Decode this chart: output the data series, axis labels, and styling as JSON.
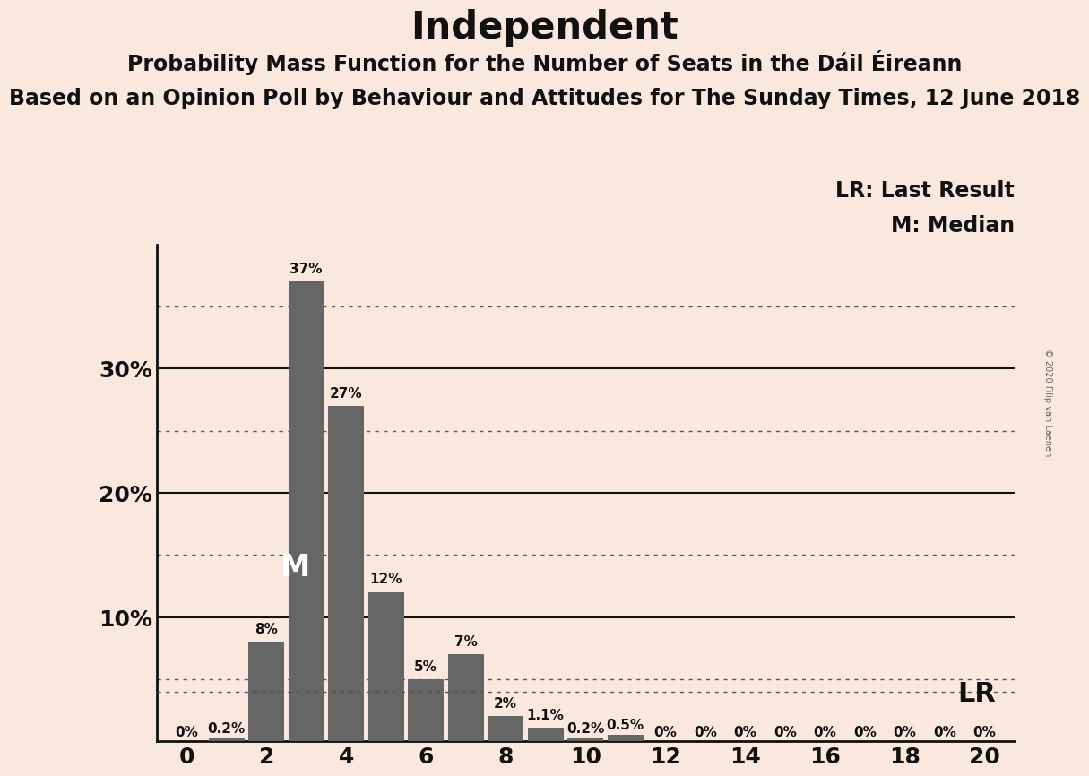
{
  "title": "Independent",
  "subtitle1": "Probability Mass Function for the Number of Seats in the Dáil Éireann",
  "subtitle2": "Based on an Opinion Poll by Behaviour and Attitudes for The Sunday Times, 12 June 2018",
  "copyright": "© 2020 Filip van Laenen",
  "bar_color": "#666666",
  "background_color": "#FAE8DF",
  "seats": [
    0,
    1,
    2,
    3,
    4,
    5,
    6,
    7,
    8,
    9,
    10,
    11,
    12,
    13,
    14,
    15,
    16,
    17,
    18,
    19,
    20
  ],
  "probabilities": [
    0.0,
    0.2,
    8.0,
    37.0,
    27.0,
    12.0,
    5.0,
    7.0,
    2.0,
    1.1,
    0.2,
    0.5,
    0.0,
    0.0,
    0.0,
    0.0,
    0.0,
    0.0,
    0.0,
    0.0,
    0.0
  ],
  "labels": [
    "0%",
    "0.2%",
    "8%",
    "37%",
    "27%",
    "12%",
    "5%",
    "7%",
    "2%",
    "1.1%",
    "0.2%",
    "0.5%",
    "0%",
    "0%",
    "0%",
    "0%",
    "0%",
    "0%",
    "0%",
    "0%",
    "0%"
  ],
  "median": 3,
  "lr_value": 4.0,
  "lr_label": "LR",
  "legend_lr": "LR: Last Result",
  "legend_m": "M: Median",
  "ylim": [
    0,
    40
  ],
  "yticks": [
    10,
    20,
    30
  ],
  "ytick_labels": [
    "10%",
    "20%",
    "30%"
  ],
  "dotted_gridlines": [
    5,
    15,
    25,
    35
  ],
  "solid_gridlines": [
    10,
    20,
    30
  ],
  "title_fontsize": 30,
  "subtitle1_fontsize": 17,
  "subtitle2_fontsize": 17,
  "bar_label_fontsize": 11,
  "axis_tick_fontsize": 18,
  "median_label_fontsize": 24,
  "lr_fontsize": 22,
  "legend_fontsize": 17
}
